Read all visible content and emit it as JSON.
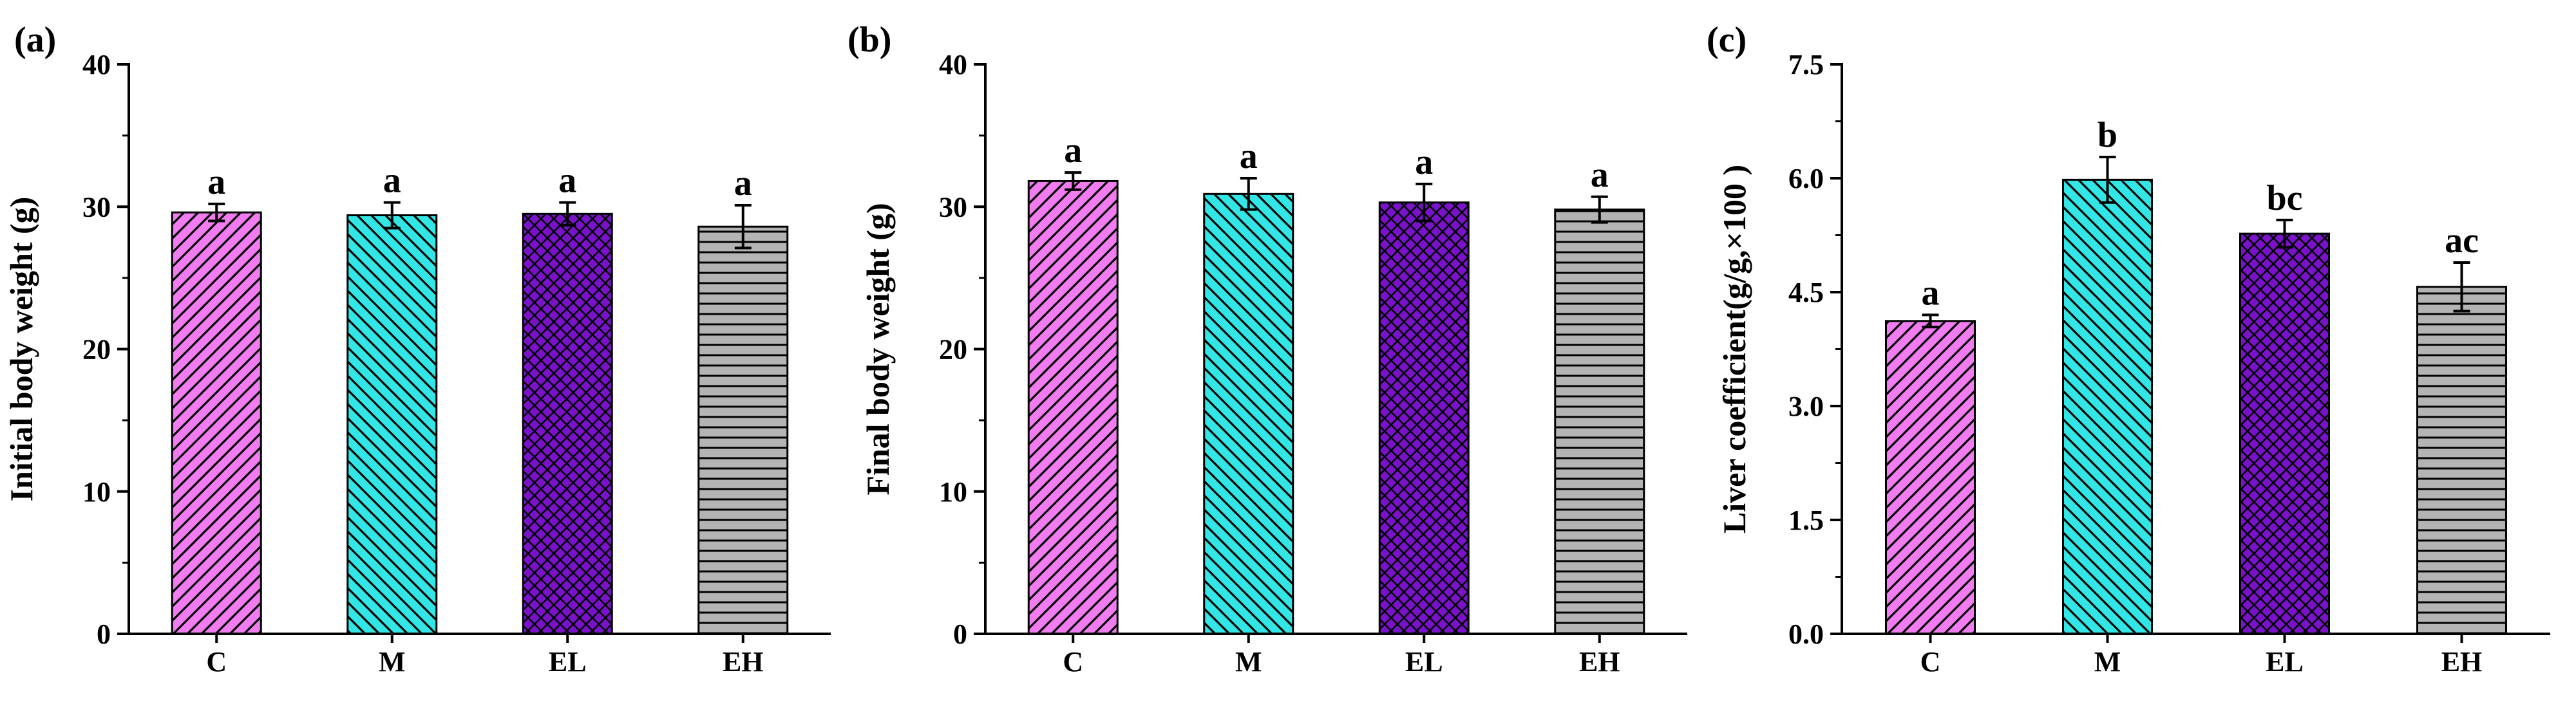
{
  "chart_data": [
    {
      "type": "bar",
      "panel_label": "(a)",
      "ylabel": "Initial body weight (g)",
      "categories": [
        "C",
        "M",
        "EL",
        "EH"
      ],
      "values": [
        29.6,
        29.4,
        29.5,
        28.6
      ],
      "errors": [
        0.6,
        0.9,
        0.8,
        1.5
      ],
      "significance": [
        "a",
        "a",
        "a",
        "a"
      ],
      "ylim": [
        0,
        40
      ],
      "yticks": [
        "0",
        "10",
        "20",
        "30",
        "40"
      ],
      "colors": [
        "#f07cf0",
        "#33e6e6",
        "#7a12cc",
        "#b4b4b4"
      ],
      "patterns": [
        "diagonal-up",
        "diagonal-down",
        "crosshatch",
        "horizontal"
      ],
      "grid": false
    },
    {
      "type": "bar",
      "panel_label": "(b)",
      "ylabel": "Final body weight (g)",
      "categories": [
        "C",
        "M",
        "EL",
        "EH"
      ],
      "values": [
        31.8,
        30.9,
        30.3,
        29.8
      ],
      "errors": [
        0.6,
        1.1,
        1.3,
        0.9
      ],
      "significance": [
        "a",
        "a",
        "a",
        "a"
      ],
      "ylim": [
        0,
        40
      ],
      "yticks": [
        "0",
        "10",
        "20",
        "30",
        "40"
      ],
      "colors": [
        "#f07cf0",
        "#33e6e6",
        "#7a12cc",
        "#b4b4b4"
      ],
      "patterns": [
        "diagonal-up",
        "diagonal-down",
        "crosshatch",
        "horizontal"
      ],
      "grid": false
    },
    {
      "type": "bar",
      "panel_label": "(c)",
      "ylabel": "Liver coefficient(g/g,×100 )",
      "categories": [
        "C",
        "M",
        "EL",
        "EH"
      ],
      "values": [
        4.12,
        5.98,
        5.27,
        4.57
      ],
      "errors": [
        0.08,
        0.3,
        0.18,
        0.32
      ],
      "significance": [
        "a",
        "b",
        "bc",
        "ac"
      ],
      "ylim": [
        0,
        7.5
      ],
      "yticks": [
        "0.0",
        "1.5",
        "3.0",
        "4.5",
        "6.0",
        "7.5"
      ],
      "colors": [
        "#f07cf0",
        "#33e6e6",
        "#7a12cc",
        "#b4b4b4"
      ],
      "patterns": [
        "diagonal-up",
        "diagonal-down",
        "crosshatch",
        "horizontal"
      ],
      "grid": false
    }
  ]
}
